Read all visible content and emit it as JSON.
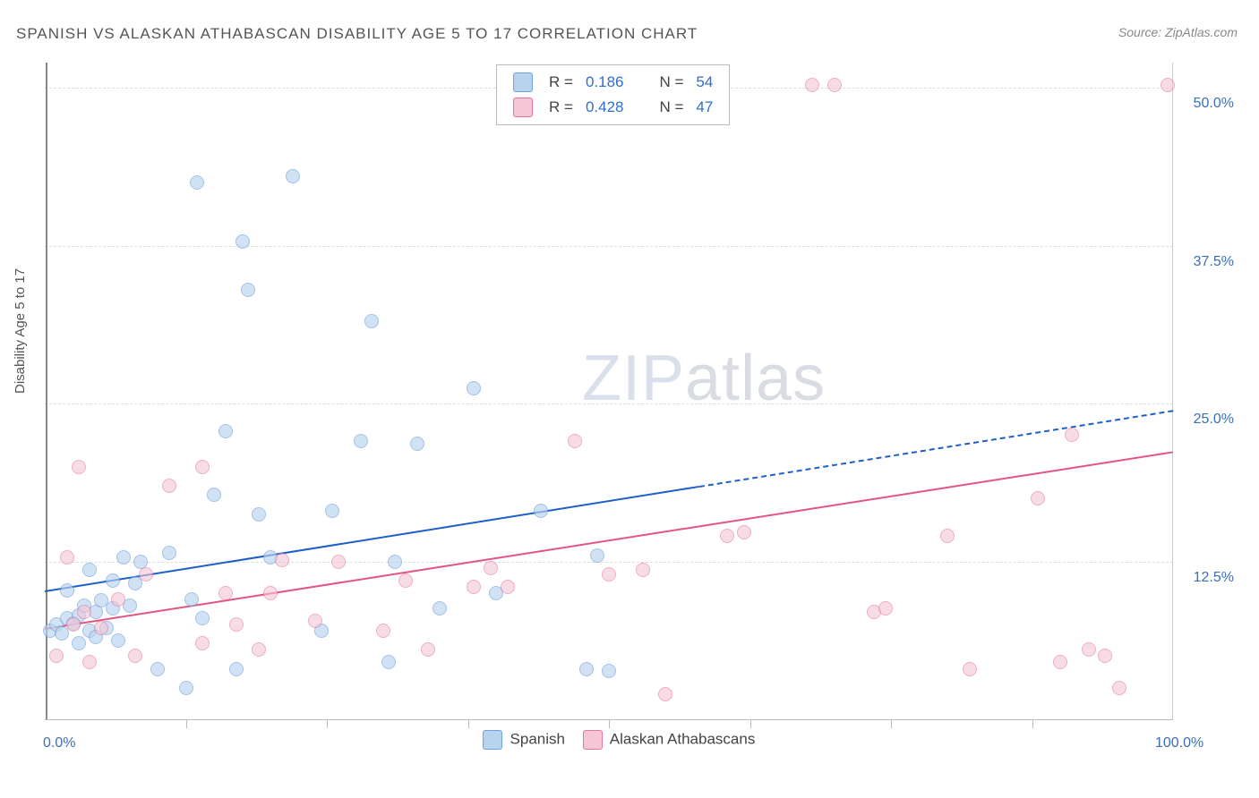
{
  "title": "SPANISH VS ALASKAN ATHABASCAN DISABILITY AGE 5 TO 17 CORRELATION CHART",
  "source_label": "Source:",
  "source_value": "ZipAtlas.com",
  "y_axis_label": "Disability Age 5 to 17",
  "watermark_a": "ZIP",
  "watermark_b": "atlas",
  "chart": {
    "type": "scatter",
    "xlim": [
      0,
      100
    ],
    "ylim": [
      0,
      52
    ],
    "x_tick_positions": [
      12.5,
      25,
      37.5,
      50,
      62.5,
      75,
      87.5
    ],
    "y_ticks": [
      {
        "v": 12.5,
        "label": "12.5%"
      },
      {
        "v": 25.0,
        "label": "25.0%"
      },
      {
        "v": 37.5,
        "label": "37.5%"
      },
      {
        "v": 50.0,
        "label": "50.0%"
      }
    ],
    "x_left_label": "0.0%",
    "x_right_label": "100.0%",
    "background_color": "#ffffff",
    "grid_color": "#dddddd",
    "axis_color": "#888888",
    "marker_radius": 8,
    "series": [
      {
        "name": "Spanish",
        "legend_label": "Spanish",
        "fill": "#b9d3ef",
        "stroke": "#6fa3dd",
        "fill_opacity": 0.65,
        "trend": {
          "color": "#1f5fc9",
          "width": 2.5,
          "y_at_x0": 10.2,
          "y_at_x100": 24.5,
          "solid_until_x": 58
        },
        "R": "0.186",
        "N": "54",
        "points": [
          [
            0.5,
            7.0
          ],
          [
            1.0,
            7.5
          ],
          [
            1.5,
            6.8
          ],
          [
            2.0,
            10.2
          ],
          [
            2.0,
            8.0
          ],
          [
            2.5,
            7.6
          ],
          [
            3.0,
            8.2
          ],
          [
            3.0,
            6.0
          ],
          [
            3.5,
            9.0
          ],
          [
            4.0,
            7.0
          ],
          [
            4.0,
            11.8
          ],
          [
            4.5,
            8.5
          ],
          [
            4.5,
            6.5
          ],
          [
            5.0,
            9.4
          ],
          [
            5.5,
            7.2
          ],
          [
            6.0,
            11.0
          ],
          [
            6.0,
            8.8
          ],
          [
            6.5,
            6.2
          ],
          [
            7.0,
            12.8
          ],
          [
            7.5,
            9.0
          ],
          [
            8.0,
            10.8
          ],
          [
            8.5,
            12.5
          ],
          [
            10.0,
            4.0
          ],
          [
            11.0,
            13.2
          ],
          [
            12.5,
            2.5
          ],
          [
            13.0,
            9.5
          ],
          [
            13.5,
            42.5
          ],
          [
            14.0,
            8.0
          ],
          [
            15.0,
            17.8
          ],
          [
            16.0,
            22.8
          ],
          [
            17.0,
            4.0
          ],
          [
            17.5,
            37.8
          ],
          [
            18.0,
            34.0
          ],
          [
            19.0,
            16.2
          ],
          [
            20.0,
            12.8
          ],
          [
            22.0,
            43.0
          ],
          [
            24.5,
            7.0
          ],
          [
            25.5,
            16.5
          ],
          [
            28.0,
            22.0
          ],
          [
            29.0,
            31.5
          ],
          [
            30.5,
            4.5
          ],
          [
            31.0,
            12.5
          ],
          [
            33.0,
            21.8
          ],
          [
            35.0,
            8.8
          ],
          [
            38.0,
            26.2
          ],
          [
            40.0,
            10.0
          ],
          [
            44.0,
            16.5
          ],
          [
            48.0,
            4.0
          ],
          [
            49.0,
            13.0
          ],
          [
            50.0,
            3.8
          ]
        ]
      },
      {
        "name": "Alaskan Athabascans",
        "legend_label": "Alaskan Athabascans",
        "fill": "#f5c6d5",
        "stroke": "#e377a0",
        "fill_opacity": 0.6,
        "trend": {
          "color": "#e2557f",
          "width": 2.5,
          "y_at_x0": 7.2,
          "y_at_x100": 21.2,
          "solid_until_x": 100
        },
        "R": "0.428",
        "N": "47",
        "points": [
          [
            1.0,
            5.0
          ],
          [
            2.0,
            12.8
          ],
          [
            2.5,
            7.5
          ],
          [
            3.0,
            20.0
          ],
          [
            3.5,
            8.5
          ],
          [
            4.0,
            4.5
          ],
          [
            5.0,
            7.2
          ],
          [
            6.5,
            9.5
          ],
          [
            8.0,
            5.0
          ],
          [
            9.0,
            11.5
          ],
          [
            11.0,
            18.5
          ],
          [
            14.0,
            20.0
          ],
          [
            14.0,
            6.0
          ],
          [
            16.0,
            10.0
          ],
          [
            17.0,
            7.5
          ],
          [
            19.0,
            5.5
          ],
          [
            20.0,
            10.0
          ],
          [
            21.0,
            12.6
          ],
          [
            24.0,
            7.8
          ],
          [
            26.0,
            12.5
          ],
          [
            30.0,
            7.0
          ],
          [
            32.0,
            11.0
          ],
          [
            34.0,
            5.5
          ],
          [
            38.0,
            10.5
          ],
          [
            39.5,
            12.0
          ],
          [
            41.0,
            10.5
          ],
          [
            47.0,
            22.0
          ],
          [
            50.0,
            11.5
          ],
          [
            53.0,
            11.8
          ],
          [
            55.0,
            2.0
          ],
          [
            60.5,
            14.5
          ],
          [
            62.0,
            14.8
          ],
          [
            68.0,
            50.2
          ],
          [
            70.0,
            50.2
          ],
          [
            73.5,
            8.5
          ],
          [
            74.5,
            8.8
          ],
          [
            80.0,
            14.5
          ],
          [
            82.0,
            4.0
          ],
          [
            88.0,
            17.5
          ],
          [
            90.0,
            4.5
          ],
          [
            91.0,
            22.5
          ],
          [
            92.5,
            5.5
          ],
          [
            94.0,
            5.0
          ],
          [
            95.2,
            2.5
          ],
          [
            99.5,
            50.2
          ]
        ]
      }
    ]
  },
  "legend_top": {
    "r_label": "R =",
    "n_label": "N ="
  }
}
